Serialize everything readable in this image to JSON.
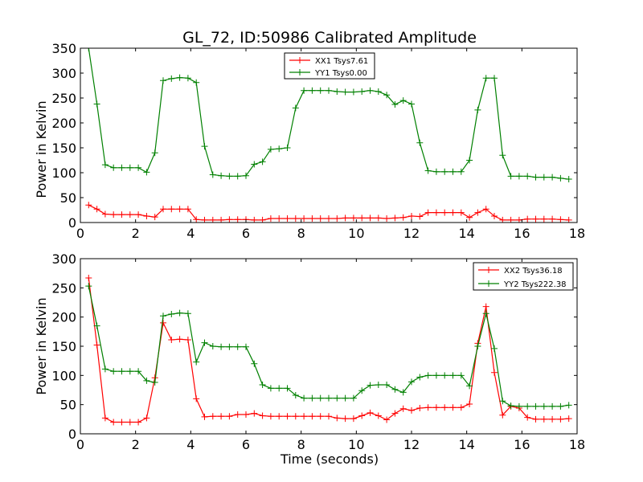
{
  "chart_data": [
    {
      "type": "line",
      "title": "GL_72, ID:50986 Calibrated Amplitude",
      "xlabel": "",
      "ylabel": "Power in Kelvin",
      "xlim": [
        0,
        18
      ],
      "ylim": [
        0,
        350
      ],
      "xticks": [
        "0",
        "2",
        "4",
        "6",
        "8",
        "10",
        "12",
        "14",
        "16",
        "18"
      ],
      "yticks": [
        "0",
        "50",
        "100",
        "150",
        "200",
        "250",
        "300",
        "350"
      ],
      "legend_position": "top-center",
      "x": [
        0.3,
        0.6,
        0.9,
        1.2,
        1.5,
        1.8,
        2.1,
        2.4,
        2.7,
        3.0,
        3.3,
        3.6,
        3.9,
        4.2,
        4.5,
        4.8,
        5.1,
        5.4,
        5.7,
        6.0,
        6.3,
        6.6,
        6.9,
        7.2,
        7.5,
        7.8,
        8.1,
        8.4,
        8.7,
        9.0,
        9.3,
        9.6,
        9.9,
        10.2,
        10.5,
        10.8,
        11.1,
        11.4,
        11.7,
        12.0,
        12.3,
        12.6,
        12.9,
        13.2,
        13.5,
        13.8,
        14.1,
        14.4,
        14.7,
        15.0,
        15.3,
        15.6,
        15.9,
        16.2,
        16.5,
        16.8,
        17.1,
        17.4,
        17.7
      ],
      "series": [
        {
          "name": "XX1 Tsys7.61",
          "color": "#ff0000",
          "values": [
            35,
            27,
            17,
            16,
            16,
            16,
            16,
            13,
            11,
            27,
            27,
            27,
            27,
            6,
            5,
            5,
            5,
            6,
            6,
            6,
            5,
            5,
            8,
            8,
            8,
            8,
            8,
            8,
            8,
            8,
            8,
            9,
            9,
            9,
            9,
            9,
            8,
            9,
            10,
            13,
            12,
            20,
            20,
            20,
            20,
            20,
            10,
            20,
            27,
            13,
            5,
            5,
            5,
            7,
            7,
            7,
            7,
            6,
            5
          ]
        },
        {
          "name": "YY1 Tsys0.00",
          "color": "#008000",
          "values": [
            350,
            238,
            116,
            110,
            110,
            110,
            110,
            101,
            140,
            285,
            289,
            291,
            290,
            281,
            153,
            96,
            94,
            93,
            93,
            94,
            117,
            122,
            147,
            148,
            150,
            230,
            265,
            265,
            265,
            265,
            263,
            262,
            262,
            263,
            265,
            263,
            256,
            237,
            245,
            238,
            160,
            104,
            102,
            102,
            102,
            102,
            125,
            226,
            290,
            290,
            135,
            93,
            93,
            93,
            91,
            91,
            91,
            89,
            87
          ]
        }
      ]
    },
    {
      "type": "line",
      "title": "",
      "xlabel": "Time (seconds)",
      "ylabel": "Power in Kelvin",
      "xlim": [
        0,
        18
      ],
      "ylim": [
        0,
        300
      ],
      "xticks": [
        "0",
        "2",
        "4",
        "6",
        "8",
        "10",
        "12",
        "14",
        "16",
        "18"
      ],
      "yticks": [
        "0",
        "50",
        "100",
        "150",
        "200",
        "250",
        "300"
      ],
      "legend_position": "top-right",
      "x": [
        0.3,
        0.6,
        0.9,
        1.2,
        1.5,
        1.8,
        2.1,
        2.4,
        2.7,
        3.0,
        3.3,
        3.6,
        3.9,
        4.2,
        4.5,
        4.8,
        5.1,
        5.4,
        5.7,
        6.0,
        6.3,
        6.6,
        6.9,
        7.2,
        7.5,
        7.8,
        8.1,
        8.4,
        8.7,
        9.0,
        9.3,
        9.6,
        9.9,
        10.2,
        10.5,
        10.8,
        11.1,
        11.4,
        11.7,
        12.0,
        12.3,
        12.6,
        12.9,
        13.2,
        13.5,
        13.8,
        14.1,
        14.4,
        14.7,
        15.0,
        15.3,
        15.6,
        15.9,
        16.2,
        16.5,
        16.8,
        17.1,
        17.4,
        17.7
      ],
      "series": [
        {
          "name": "XX2 Tsys36.18",
          "color": "#ff0000",
          "values": [
            267,
            152,
            27,
            20,
            20,
            20,
            20,
            27,
            96,
            190,
            161,
            162,
            161,
            60,
            29,
            30,
            30,
            30,
            33,
            33,
            35,
            31,
            30,
            30,
            30,
            30,
            30,
            30,
            30,
            30,
            27,
            26,
            26,
            31,
            36,
            31,
            24,
            35,
            43,
            40,
            44,
            45,
            45,
            45,
            45,
            45,
            51,
            155,
            218,
            105,
            32,
            47,
            44,
            28,
            25,
            25,
            25,
            25,
            26
          ]
        },
        {
          "name": "YY2 Tsys222.38",
          "color": "#008000",
          "values": [
            253,
            185,
            111,
            107,
            107,
            107,
            107,
            91,
            88,
            202,
            205,
            207,
            206,
            123,
            156,
            150,
            149,
            149,
            149,
            149,
            120,
            84,
            78,
            78,
            78,
            66,
            61,
            61,
            61,
            61,
            61,
            61,
            61,
            74,
            83,
            84,
            84,
            76,
            71,
            89,
            97,
            100,
            100,
            100,
            100,
            100,
            82,
            150,
            206,
            146,
            56,
            48,
            47,
            47,
            47,
            47,
            47,
            47,
            49
          ]
        }
      ]
    }
  ]
}
